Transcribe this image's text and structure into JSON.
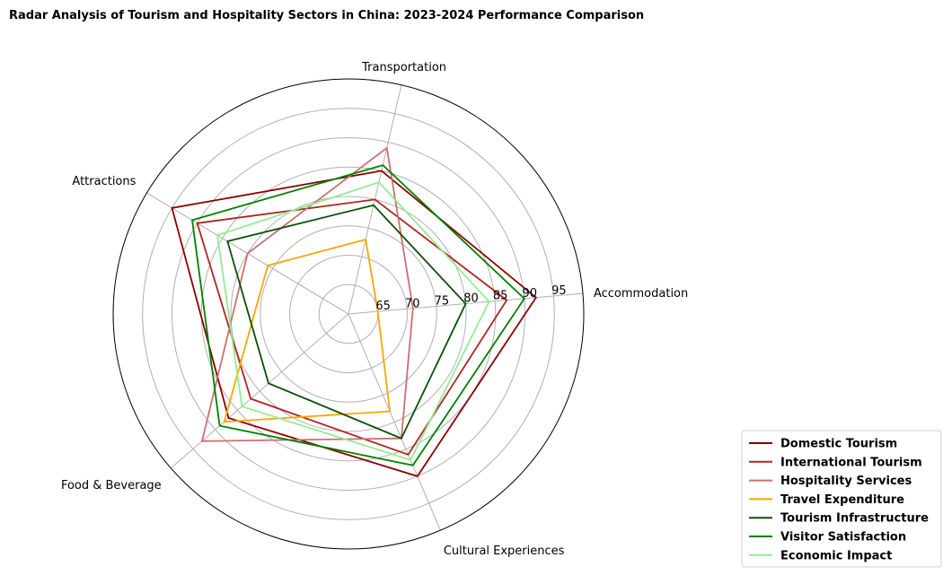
{
  "chart_data": {
    "type": "radar",
    "title": "Radar Analysis of Tourism and Hospitality Sectors in China: 2023-2024 Performance Comparison",
    "categories": [
      "Accommodation",
      "Transportation",
      "Attractions",
      "Food & Beverage",
      "Cultural Experiences"
    ],
    "rlim": [
      60,
      100
    ],
    "rticks": [
      65,
      70,
      75,
      80,
      85,
      90,
      95
    ],
    "grid": true,
    "legend": "lower-right",
    "series": [
      {
        "name": "Domestic Tourism",
        "color": "#8b0000",
        "values": [
          92,
          85,
          95,
          87,
          90
        ]
      },
      {
        "name": "International Tourism",
        "color": "#b22222",
        "values": [
          87,
          80,
          90,
          82,
          86
        ]
      },
      {
        "name": "Hospitality Services",
        "color": "#cd7070",
        "values": [
          71,
          89,
          80,
          93,
          83
        ]
      },
      {
        "name": "Travel Expenditure",
        "color": "#ffa500",
        "values": [
          65,
          73,
          76,
          88,
          78
        ]
      },
      {
        "name": "Tourism Infrastructure",
        "color": "#0a4f0a",
        "values": [
          80,
          79,
          84,
          78,
          83
        ]
      },
      {
        "name": "Visitor Satisfaction",
        "color": "#008000",
        "values": [
          90,
          86,
          91,
          89,
          88
        ]
      },
      {
        "name": "Economic Impact",
        "color": "#90ee90",
        "values": [
          84,
          83,
          86,
          84,
          87
        ]
      }
    ]
  }
}
